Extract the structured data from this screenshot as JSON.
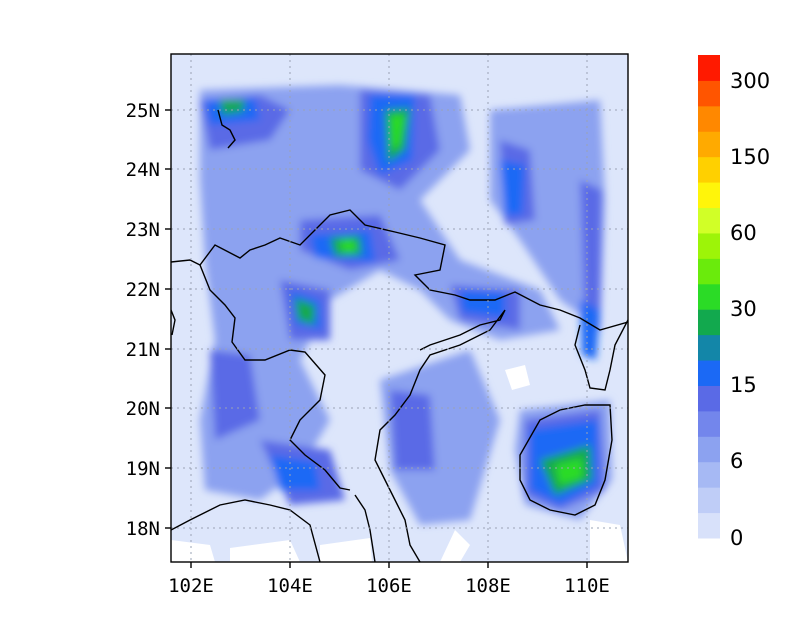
{
  "map": {
    "y_ticks": [
      "25N",
      "24N",
      "23N",
      "22N",
      "21N",
      "20N",
      "19N",
      "18N"
    ],
    "x_ticks": [
      "102E",
      "104E",
      "106E",
      "108E",
      "110E"
    ],
    "lat_values": [
      25,
      24,
      23,
      22,
      21,
      20,
      19,
      18
    ],
    "lon_values": [
      102,
      104,
      106,
      108,
      110
    ],
    "lon_range": [
      101.65,
      110.85
    ],
    "lat_range": [
      17.4,
      25.95
    ],
    "gridlines": "dotted",
    "background_color": "#ffffff",
    "map_fill_low": "#dde6fb"
  },
  "colorbar": {
    "labels": [
      "0",
      "6",
      "15",
      "30",
      "60",
      "150",
      "300"
    ],
    "colors": [
      "#d8e1fa",
      "#bfcdf7",
      "#a6b9f4",
      "#8ca2f0",
      "#7386ec",
      "#5a6ae6",
      "#1b69f5",
      "#1386a8",
      "#12a94e",
      "#2bdb26",
      "#6aeb0c",
      "#9df408",
      "#d1ff27",
      "#fff50a",
      "#ffd000",
      "#ffaa00",
      "#ff8800",
      "#ff5500",
      "#ff1a00"
    ]
  }
}
